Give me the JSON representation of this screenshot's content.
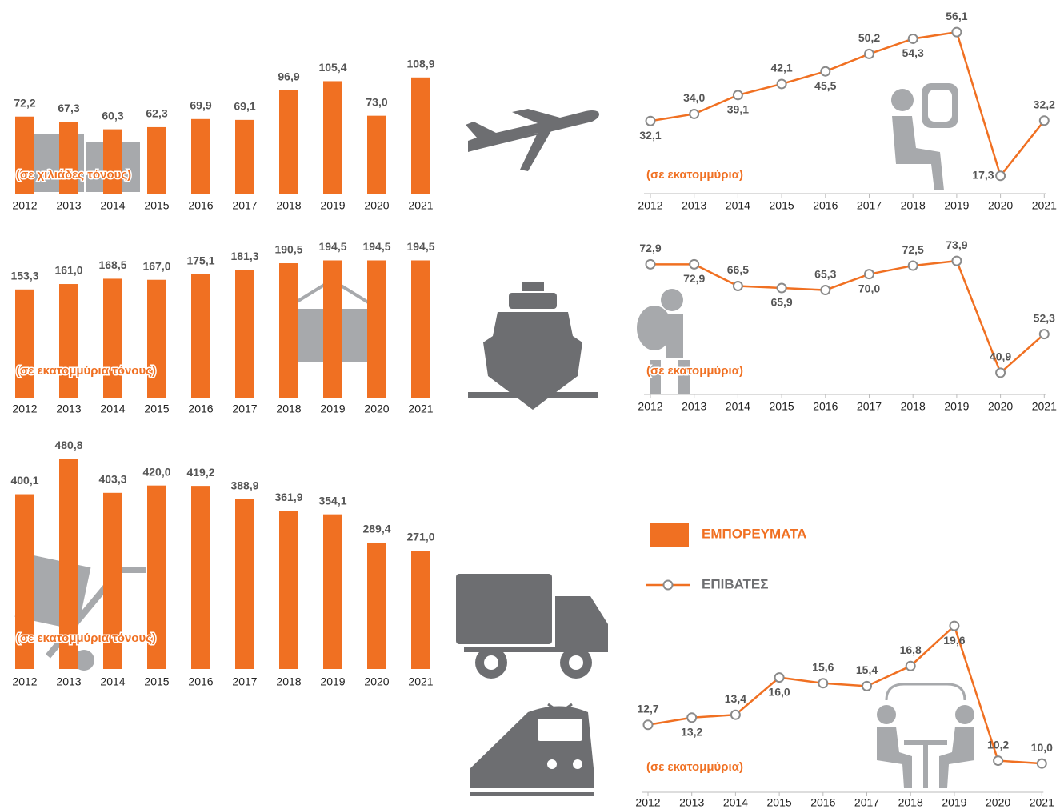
{
  "chart_data": [
    {
      "type": "bar",
      "categories": [
        "2012",
        "2013",
        "2014",
        "2015",
        "2016",
        "2017",
        "2018",
        "2019",
        "2020",
        "2021"
      ],
      "values": [
        72.2,
        67.3,
        60.3,
        62.3,
        69.9,
        69.1,
        96.9,
        105.4,
        73.0,
        108.9
      ],
      "value_labels": [
        "72,2",
        "67,3",
        "60,3",
        "62,3",
        "69,9",
        "69,1",
        "96,9",
        "105,4",
        "73,0",
        "108,9"
      ],
      "unit_label": "(σε χιλιάδες τόνους)",
      "color": "#f07022",
      "ylim": [
        0,
        120
      ]
    },
    {
      "type": "line",
      "categories": [
        "2012",
        "2013",
        "2014",
        "2015",
        "2016",
        "2017",
        "2018",
        "2019",
        "2020",
        "2021"
      ],
      "values": [
        32.1,
        34.0,
        39.1,
        42.1,
        45.5,
        50.2,
        54.3,
        56.1,
        17.3,
        32.2
      ],
      "value_labels": [
        "32,1",
        "34,0",
        "39,1",
        "42,1",
        "45,5",
        "50,2",
        "54,3",
        "56,1",
        "17,3",
        "32,2"
      ],
      "unit_label": "(σε εκατομμύρια)",
      "color": "#f07022",
      "ylim": [
        12.5,
        58.5
      ]
    },
    {
      "type": "bar",
      "categories": [
        "2012",
        "2013",
        "2014",
        "2015",
        "2016",
        "2017",
        "2018",
        "2019",
        "2020",
        "2021"
      ],
      "values": [
        153.3,
        161.0,
        168.5,
        167.0,
        175.1,
        181.3,
        190.5,
        194.5,
        194.5,
        194.5
      ],
      "value_labels": [
        "153,3",
        "161,0",
        "168,5",
        "167,0",
        "175,1",
        "181,3",
        "190,5",
        "194,5",
        "194,5",
        "194,5"
      ],
      "unit_label": "(σε εκατομμύρια τόνους)",
      "color": "#f07022",
      "ylim": [
        0,
        220
      ]
    },
    {
      "type": "line",
      "categories": [
        "2012",
        "2013",
        "2014",
        "2015",
        "2016",
        "2017",
        "2018",
        "2019",
        "2020",
        "2021"
      ],
      "values": [
        72.9,
        72.9,
        66.5,
        65.9,
        65.3,
        70.0,
        72.5,
        73.9,
        40.9,
        52.3
      ],
      "value_labels": [
        "72,9",
        "72,9",
        "66,5",
        "65,9",
        "65,3",
        "70,0",
        "72,5",
        "73,9",
        "40,9",
        "52,3"
      ],
      "unit_label": "(σε εκατομμύρια)",
      "color": "#f07022",
      "ylim": [
        34.5,
        77
      ]
    },
    {
      "type": "bar",
      "categories": [
        "2012",
        "2013",
        "2014",
        "2015",
        "2016",
        "2017",
        "2018",
        "2019",
        "2020",
        "2021"
      ],
      "values": [
        400.1,
        480.8,
        403.3,
        420.0,
        419.2,
        388.9,
        361.9,
        354.1,
        289.4,
        271.0
      ],
      "value_labels": [
        "400,1",
        "480,8",
        "403,3",
        "420,0",
        "419,2",
        "388,9",
        "361,9",
        "354,1",
        "289,4",
        "271,0"
      ],
      "unit_label": "(σε εκατομμύρια τόνους)",
      "color": "#f07022",
      "ylim": [
        0,
        500
      ]
    },
    {
      "type": "line",
      "categories": [
        "2012",
        "2013",
        "2014",
        "2015",
        "2016",
        "2017",
        "2018",
        "2019",
        "2020",
        "2021"
      ],
      "values": [
        12.7,
        13.2,
        13.4,
        16.0,
        15.6,
        15.4,
        16.8,
        19.6,
        10.2,
        10.0
      ],
      "value_labels": [
        "12,7",
        "13,2",
        "13,4",
        "16,0",
        "15,6",
        "15,4",
        "16,8",
        "19,6",
        "10,2",
        "10,0"
      ],
      "unit_label": "(σε εκατομμύρια)",
      "color": "#f07022",
      "ylim": [
        8,
        21
      ]
    }
  ],
  "legend": {
    "freight": "ΕΜΠΟΡΕΥΜΑΤΑ",
    "passengers": "ΕΠΙΒΑΤΕΣ"
  }
}
